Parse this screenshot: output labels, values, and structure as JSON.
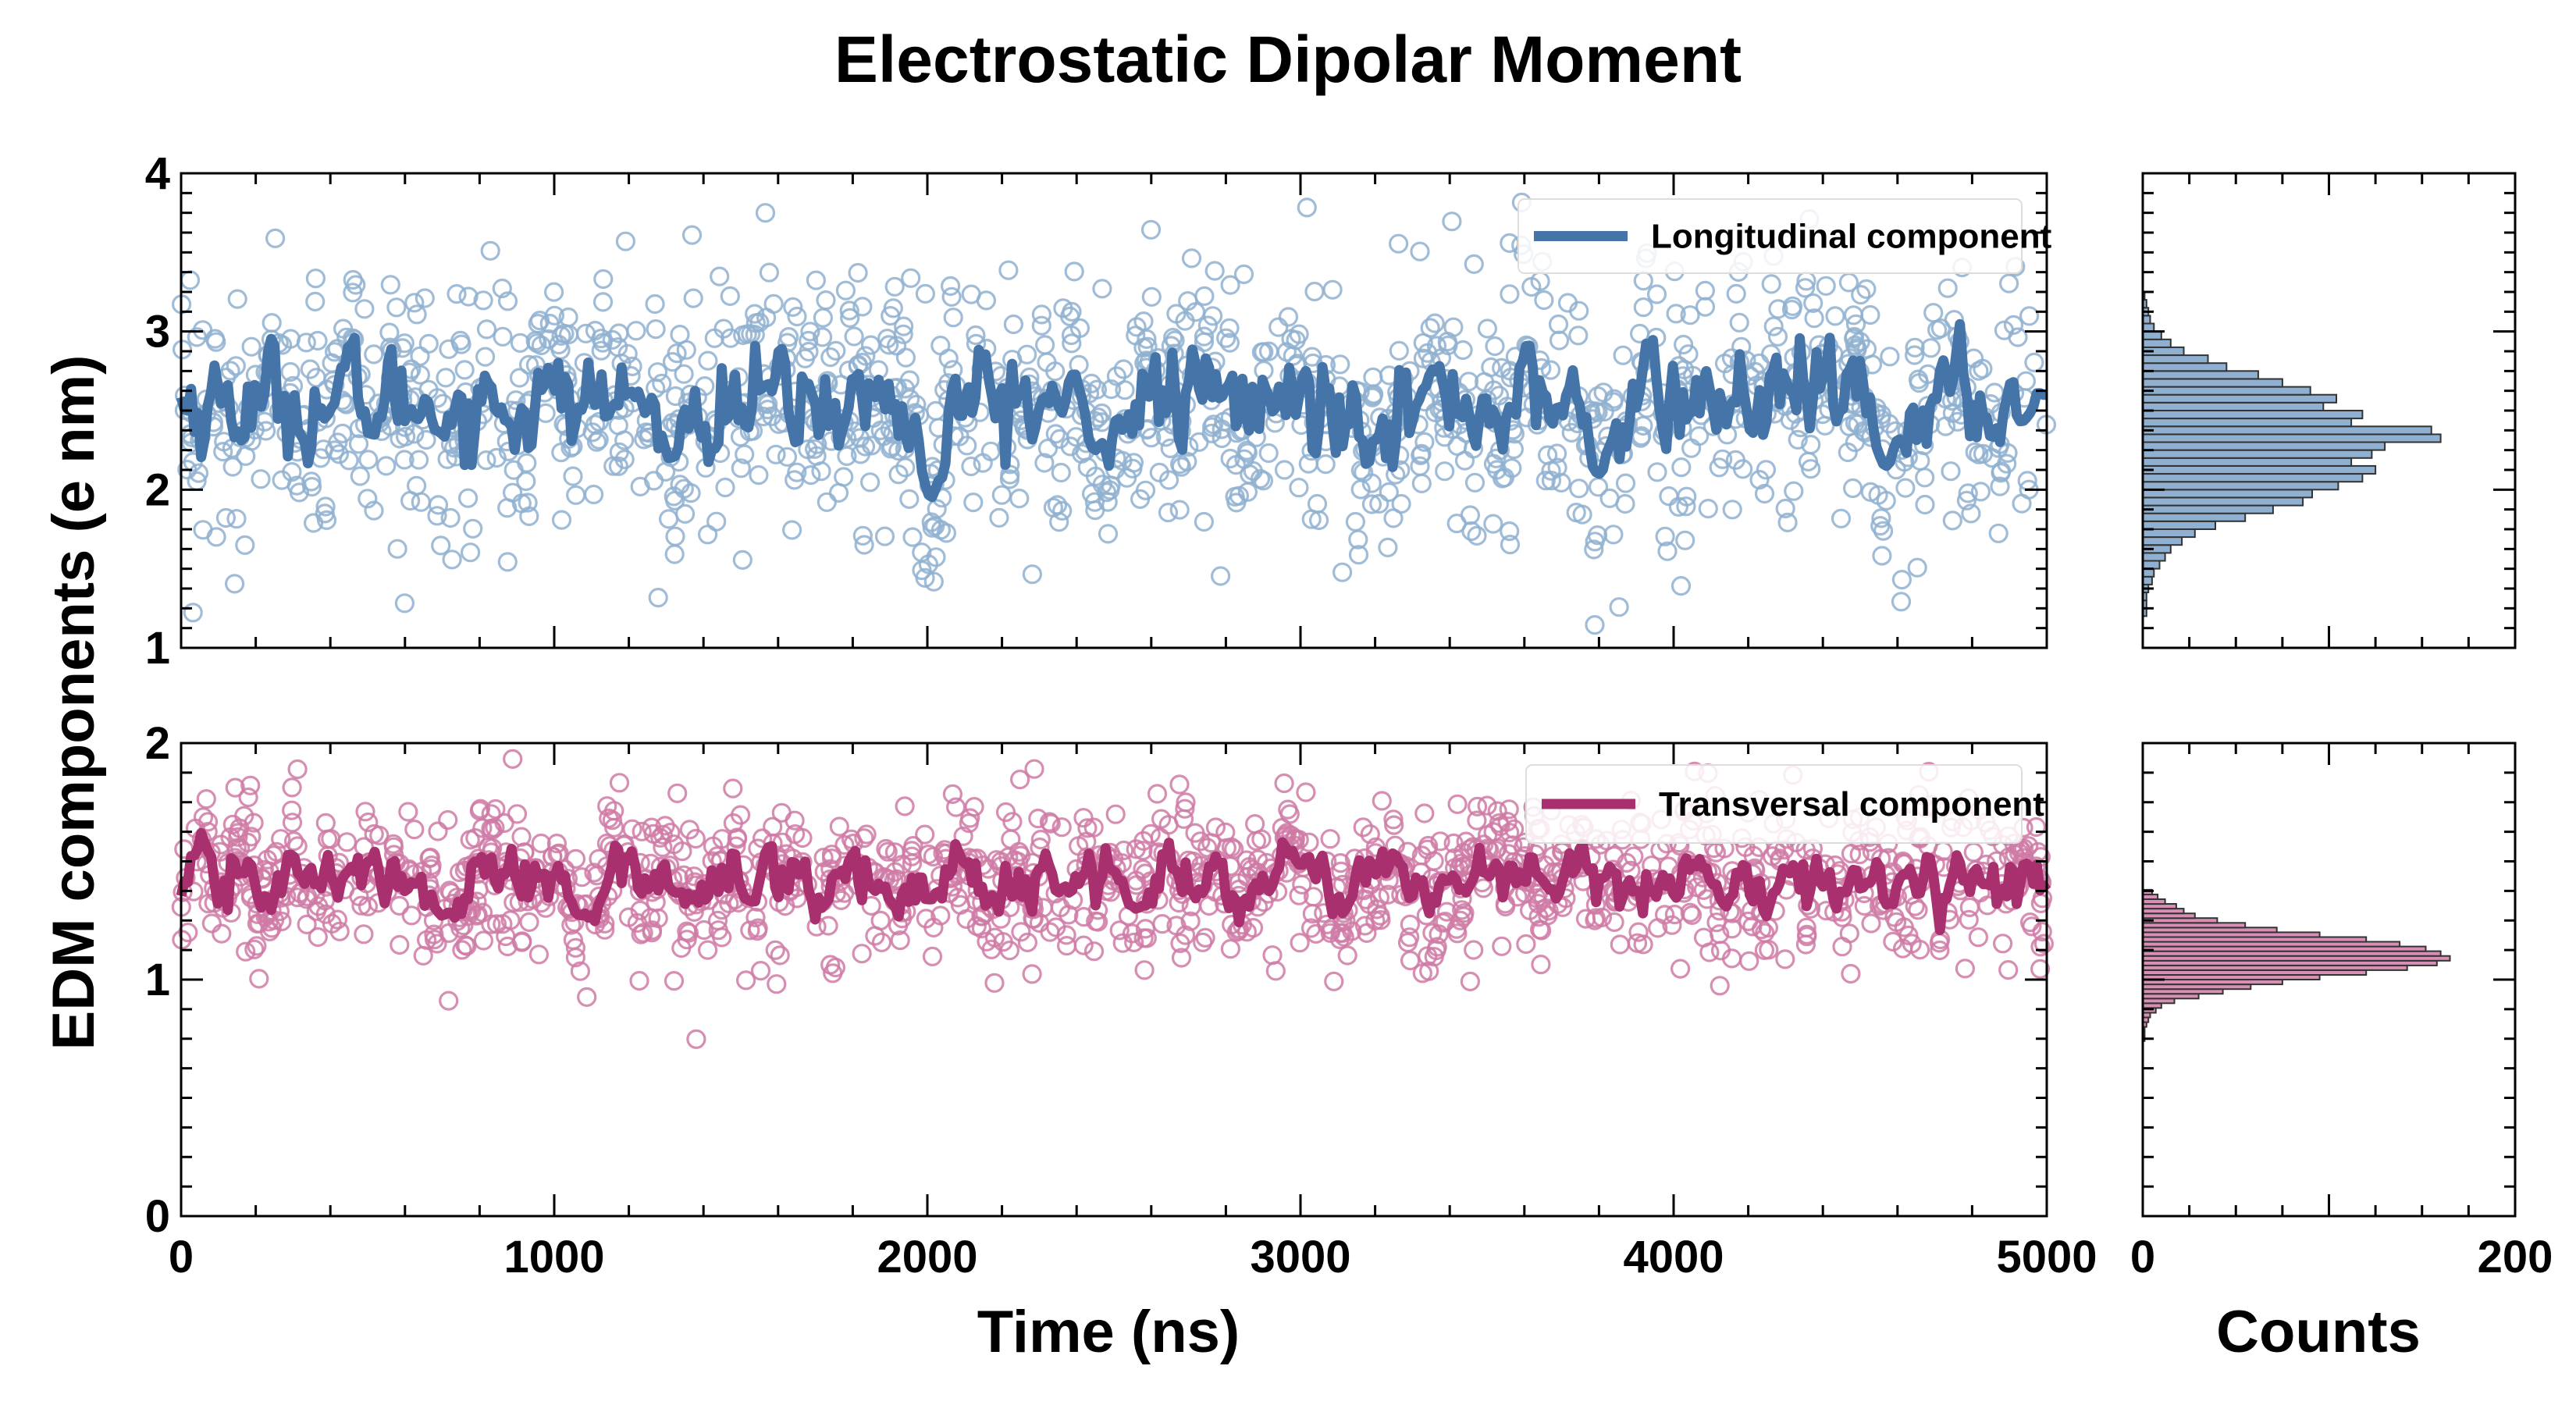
{
  "chart_data": {
    "title": "Electrostatic Dipolar Moment",
    "ylabel": "EDM components (e nm)",
    "xlabel": "Time (ns)",
    "hist_xlabel": "Counts",
    "colors": {
      "longitudinal_line": "#4474a8",
      "longitudinal_point": "#8fb0d0",
      "longitudinal_bar": "#8fb0d0",
      "transversal_line": "#a8306e",
      "transversal_point": "#cf7aa5",
      "transversal_bar": "#d98fb5"
    },
    "panels": [
      {
        "type": "scatter",
        "xlim": [
          0,
          5000
        ],
        "ylim": [
          1,
          4
        ],
        "yticks": [
          1,
          2,
          3,
          4
        ],
        "xticks": [
          0,
          1000,
          2000,
          3000,
          4000,
          5000
        ],
        "show_xtick_labels": false,
        "legend": "top-right",
        "series": [
          {
            "name": "Longitudinal component",
            "mean": 2.55,
            "scatter_sd": 0.42,
            "smooth_sd": 0.17,
            "n_points": 1300,
            "dips": [
              [
                2010,
                1.95
              ],
              [
                1310,
                2.2
              ],
              [
                2450,
                2.25
              ],
              [
                3800,
                2.1
              ],
              [
                4570,
                2.15
              ],
              [
                5000,
                2.6
              ]
            ]
          }
        ]
      },
      {
        "type": "scatter",
        "xlim": [
          0,
          5000
        ],
        "ylim": [
          0,
          2
        ],
        "yticks": [
          0,
          1,
          2
        ],
        "xticks": [
          0,
          1000,
          2000,
          3000,
          4000,
          5000
        ],
        "show_xtick_labels": true,
        "legend": "top-right",
        "series": [
          {
            "name": "Transversal component",
            "mean": 1.42,
            "scatter_sd": 0.17,
            "smooth_sd": 0.07,
            "n_points": 1300,
            "dips": [
              [
                700,
                1.27
              ],
              [
                1070,
                1.27
              ],
              [
                2560,
                1.3
              ]
            ]
          }
        ]
      }
    ],
    "histograms": [
      {
        "xlim": [
          0,
          200
        ],
        "bin_width": 0.05,
        "bins_start": 1.2,
        "counts": [
          2,
          2,
          2,
          3,
          5,
          6,
          9,
          12,
          15,
          21,
          28,
          39,
          55,
          70,
          86,
          91,
          105,
          118,
          125,
          112,
          123,
          130,
          160,
          155,
          112,
          118,
          97,
          104,
          90,
          75,
          62,
          45,
          35,
          22,
          15,
          10,
          6,
          4,
          3,
          2,
          1
        ]
      },
      {
        "xlim": [
          0,
          200
        ],
        "bin_width": 0.02,
        "bins_start": 0.74,
        "counts": [
          1,
          1,
          1,
          2,
          3,
          4,
          7,
          10,
          17,
          30,
          43,
          58,
          75,
          95,
          120,
          142,
          158,
          165,
          160,
          152,
          138,
          120,
          95,
          72,
          55,
          40,
          28,
          22,
          18,
          12,
          8,
          5
        ]
      }
    ],
    "hist_xticks": [
      0,
      200
    ]
  }
}
